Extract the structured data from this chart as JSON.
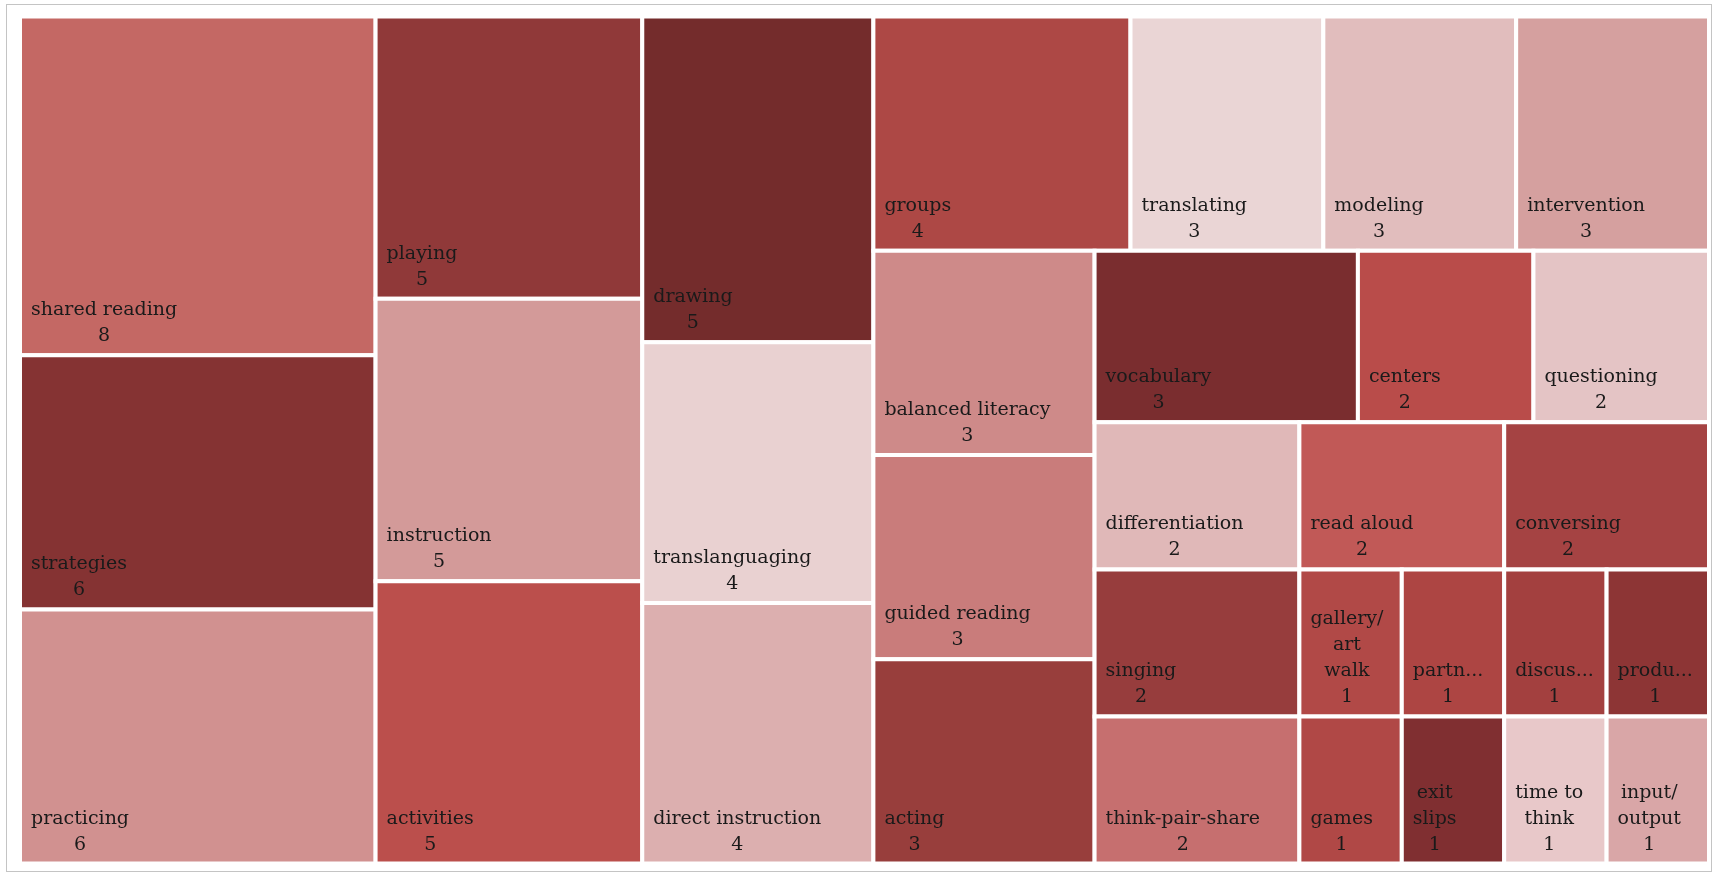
{
  "chart_data": {
    "type": "other",
    "categories": [
      "shared reading",
      "strategies",
      "practicing",
      "playing",
      "instruction",
      "activities",
      "drawing",
      "translanguaging",
      "direct instruction",
      "groups",
      "translating",
      "modeling",
      "intervention",
      "balanced literacy",
      "guided reading",
      "acting",
      "vocabulary",
      "centers",
      "questioning",
      "differentiation",
      "read aloud",
      "conversing",
      "singing",
      "think-pair-share",
      "gallery/art walk",
      "games",
      "partn...",
      "exit slips",
      "discus...",
      "time to think",
      "produ...",
      "input/output"
    ],
    "values": [
      8,
      6,
      6,
      5,
      5,
      5,
      5,
      4,
      4,
      4,
      3,
      3,
      3,
      3,
      3,
      3,
      3,
      2,
      2,
      2,
      2,
      2,
      2,
      2,
      1,
      1,
      1,
      1,
      1,
      1,
      1,
      1
    ],
    "colors": [
      "#c46864",
      "#853333",
      "#d19190",
      "#903939",
      "#d39a99",
      "#bb4f4c",
      "#742c2c",
      "#e9d1d1",
      "#dcafaf",
      "#ad4845",
      "#ead5d5",
      "#e1bdbd",
      "#d5a09f",
      "#ce8a89",
      "#c97c7b",
      "#983e3c",
      "#7a2d2f",
      "#b94c4a",
      "#e4c4c5",
      "#e0b8b8",
      "#c15957",
      "#a54343",
      "#973d3d",
      "#c66f6f",
      "#b14947",
      "#b04846",
      "#ad4543",
      "#802f31",
      "#a3403f",
      "#e8c8c9",
      "#8d3535",
      "#d9a6a7"
    ],
    "data_labels": true
  }
}
